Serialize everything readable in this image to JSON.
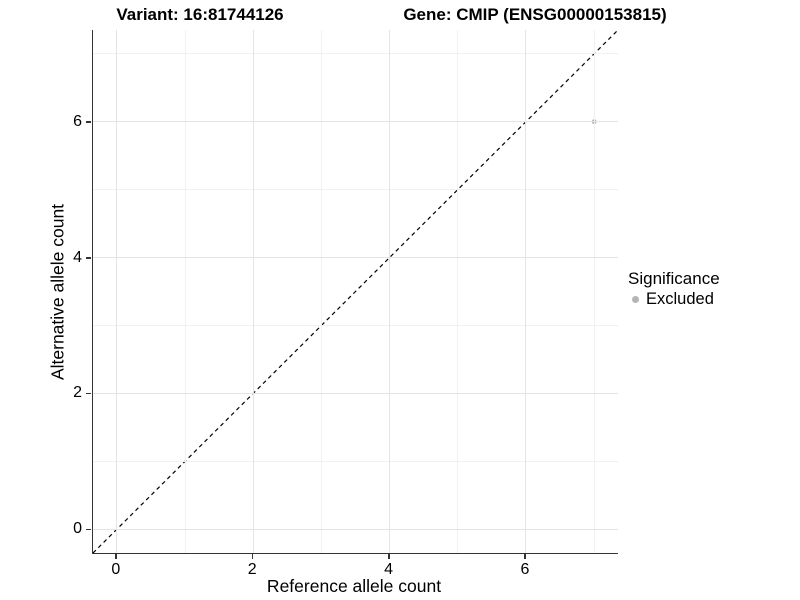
{
  "titles": {
    "variant": "Variant: 16:81744126",
    "gene": "Gene: CMIP (ENSG00000153815)"
  },
  "chart_data": {
    "type": "scatter",
    "title_left": "Variant: 16:81744126",
    "title_right": "Gene: CMIP (ENSG00000153815)",
    "xlabel": "Reference allele count",
    "ylabel": "Alternative allele count",
    "xlim": [
      -0.35,
      7.35
    ],
    "ylim": [
      -0.35,
      7.35
    ],
    "x_ticks": [
      0,
      2,
      4,
      6
    ],
    "y_ticks": [
      0,
      2,
      4,
      6
    ],
    "x_minor_ticks": [
      1,
      3,
      5,
      7
    ],
    "y_minor_ticks": [
      1,
      3,
      5,
      7
    ],
    "grid": true,
    "points": [
      {
        "x": 7,
        "y": 6,
        "series": "Excluded"
      }
    ],
    "reference_line": {
      "slope": 1,
      "intercept": 0,
      "style": "dashed",
      "color": "#000000"
    },
    "legend": {
      "position": "right",
      "title": "Significance",
      "entries": [
        {
          "label": "Excluded",
          "color": "#b5b5b5"
        }
      ]
    }
  },
  "colors": {
    "background": "#ffffff",
    "axis_line": "#333333",
    "grid_major": "#e4e4e4",
    "grid_minor": "#f1f1f1",
    "point_excluded": "#b5b5b5",
    "reference_line": "#000000",
    "text": "#000000"
  }
}
